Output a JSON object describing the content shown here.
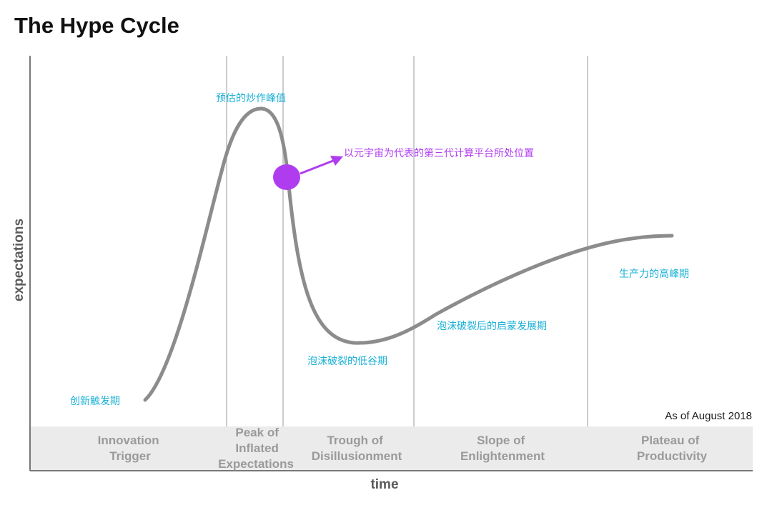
{
  "title": "The Hype Cycle",
  "axes": {
    "ylabel": "expectations",
    "xlabel": "time"
  },
  "phases": [
    {
      "lines": [
        "Innovation",
        "Trigger"
      ]
    },
    {
      "lines": [
        "Peak of",
        "Inflated",
        "Expectations"
      ]
    },
    {
      "lines": [
        "Trough of",
        "Disillusionment"
      ]
    },
    {
      "lines": [
        "Slope of",
        "Enlightenment"
      ]
    },
    {
      "lines": [
        "Plateau of",
        "Productivity"
      ]
    }
  ],
  "annotations": {
    "trigger": "创新触发期",
    "peak": "预估的炒作峰值",
    "trough": "泡沫破裂的低谷期",
    "slope": "泡沫破裂后的启蒙发展期",
    "plateau": "生产力的高峰期",
    "marker": "以元宇宙为代表的第三代计算平台所处位置"
  },
  "date_note": "As of August 2018",
  "colors": {
    "curve": "#8c8c8c",
    "annotation": "#1ab0d6",
    "marker": "#b03cf0",
    "band": "#ebebeb",
    "grid": "#cccccc"
  }
}
